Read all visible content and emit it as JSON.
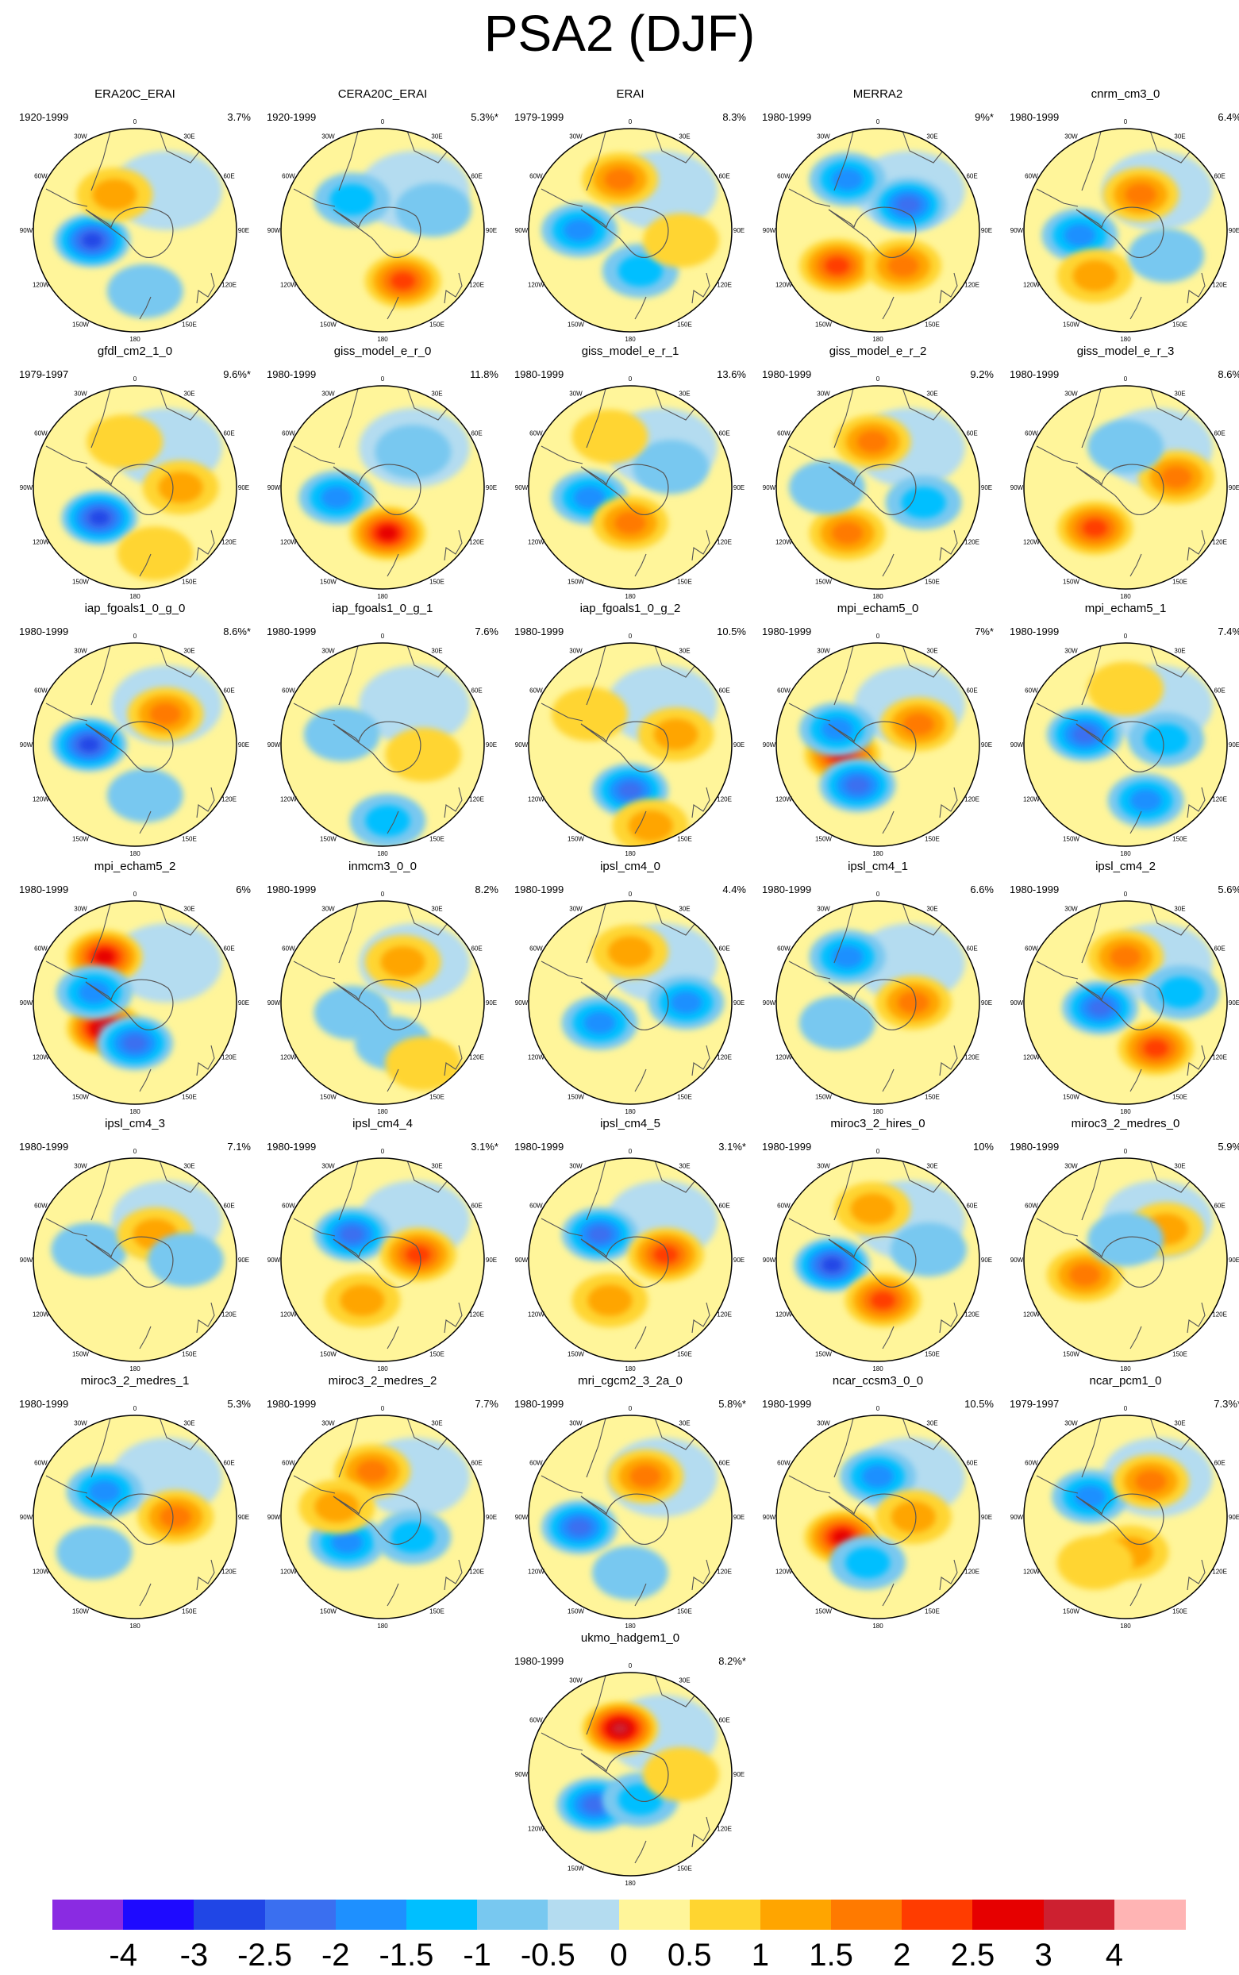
{
  "chart_data": {
    "type": "heatmap",
    "title": "PSA2 (DJF)",
    "map_labels": {
      "top": "0",
      "bottom": "180",
      "upper_right": "30E",
      "upper_left": "30W",
      "mid_upper_right": "60E",
      "mid_upper_left": "60W",
      "right": "90E",
      "left": "90W",
      "mid_lower_right": "120E",
      "mid_lower_left": "120W",
      "lower_right": "150E",
      "lower_left": "150W"
    },
    "colorbar": {
      "labels": [
        "-4",
        "-3",
        "-2.5",
        "-2",
        "-1.5",
        "-1",
        "-0.5",
        "0",
        "0.5",
        "1",
        "1.5",
        "2",
        "2.5",
        "3",
        "4"
      ],
      "colors": [
        "#8a2be2",
        "#1e0aff",
        "#2046e6",
        "#3a6ff0",
        "#1e90ff",
        "#00bfff",
        "#78c8f0",
        "#b4dcf0",
        "#fff59a",
        "#ffd530",
        "#ffa500",
        "#ff7a00",
        "#ff3c00",
        "#e60000",
        "#cd2030",
        "#ffb4b4"
      ]
    },
    "panels": [
      {
        "name": "ERA20C_ERAI",
        "period": "1920-1999",
        "variance": "3.7%",
        "blobs": [
          [
            -0.42,
            0.1,
            -2.5
          ],
          [
            -0.2,
            -0.35,
            1.0
          ],
          [
            0.1,
            0.6,
            -0.8
          ]
        ]
      },
      {
        "name": "CERA20C_ERAI",
        "period": "1920-1999",
        "variance": "5.3%*",
        "blobs": [
          [
            -0.3,
            -0.3,
            -1.0
          ],
          [
            0.2,
            0.5,
            2.0
          ],
          [
            0.5,
            -0.2,
            -0.6
          ]
        ]
      },
      {
        "name": "ERAI",
        "period": "1979-1999",
        "variance": "8.3%",
        "blobs": [
          [
            -0.5,
            0.0,
            -1.5
          ],
          [
            -0.1,
            -0.5,
            1.5
          ],
          [
            0.1,
            0.4,
            -1.2
          ],
          [
            0.5,
            0.1,
            0.8
          ]
        ]
      },
      {
        "name": "MERRA2",
        "period": "1980-1999",
        "variance": "9%*",
        "blobs": [
          [
            -0.3,
            -0.5,
            -1.5
          ],
          [
            0.3,
            -0.25,
            -2.0
          ],
          [
            -0.4,
            0.35,
            2.0
          ],
          [
            0.25,
            0.35,
            1.5
          ]
        ]
      },
      {
        "name": "cnrm_cm3_0",
        "period": "1980-1999",
        "variance": "6.4%",
        "blobs": [
          [
            -0.45,
            0.05,
            -1.5
          ],
          [
            0.15,
            -0.35,
            1.5
          ],
          [
            -0.3,
            0.45,
            1.2
          ],
          [
            0.4,
            0.25,
            -0.8
          ]
        ]
      },
      {
        "name": "gfdl_cm2_1_0",
        "period": "1979-1997",
        "variance": "9.6%*",
        "blobs": [
          [
            -0.35,
            0.3,
            -2.5
          ],
          [
            -0.1,
            -0.45,
            0.8
          ],
          [
            0.45,
            0.0,
            1.2
          ],
          [
            0.2,
            0.65,
            0.6
          ]
        ]
      },
      {
        "name": "giss_model_e_r_0",
        "period": "1980-1999",
        "variance": "11.8%",
        "blobs": [
          [
            -0.45,
            0.1,
            -1.5
          ],
          [
            0.05,
            0.45,
            2.5
          ],
          [
            0.3,
            -0.35,
            -0.8
          ]
        ]
      },
      {
        "name": "giss_model_e_r_1",
        "period": "1980-1999",
        "variance": "13.6%",
        "blobs": [
          [
            -0.4,
            0.1,
            -1.5
          ],
          [
            0.0,
            0.35,
            1.5
          ],
          [
            0.4,
            -0.2,
            -0.8
          ],
          [
            -0.2,
            -0.5,
            0.8
          ]
        ]
      },
      {
        "name": "giss_model_e_r_2",
        "period": "1980-1999",
        "variance": "9.2%",
        "blobs": [
          [
            -0.05,
            -0.45,
            1.5
          ],
          [
            -0.3,
            0.45,
            1.5
          ],
          [
            0.45,
            0.15,
            -1.0
          ],
          [
            -0.5,
            0.0,
            -0.8
          ]
        ]
      },
      {
        "name": "giss_model_e_r_3",
        "period": "1980-1999",
        "variance": "8.6%",
        "blobs": [
          [
            -0.3,
            0.4,
            2.0
          ],
          [
            0.5,
            -0.1,
            1.5
          ],
          [
            0.0,
            -0.4,
            -0.6
          ]
        ]
      },
      {
        "name": "iap_fgoals1_0_g_0",
        "period": "1980-1999",
        "variance": "8.6%*",
        "blobs": [
          [
            -0.45,
            0.0,
            -2.5
          ],
          [
            0.3,
            -0.3,
            1.5
          ],
          [
            0.1,
            0.5,
            -0.8
          ]
        ]
      },
      {
        "name": "iap_fgoals1_0_g_1",
        "period": "1980-1999",
        "variance": "7.6%",
        "blobs": [
          [
            -0.4,
            -0.1,
            -0.8
          ],
          [
            0.05,
            0.75,
            -1.2
          ],
          [
            0.4,
            0.1,
            0.6
          ]
        ]
      },
      {
        "name": "iap_fgoals1_0_g_2",
        "period": "1980-1999",
        "variance": "10.5%",
        "blobs": [
          [
            0.0,
            0.45,
            -2.0
          ],
          [
            0.45,
            -0.1,
            1.2
          ],
          [
            0.2,
            0.8,
            1.0
          ],
          [
            -0.4,
            -0.3,
            0.6
          ]
        ]
      },
      {
        "name": "mpi_echam5_0",
        "period": "1980-1999",
        "variance": "7%*",
        "blobs": [
          [
            -0.35,
            0.1,
            2.5
          ],
          [
            -0.4,
            -0.15,
            -1.5
          ],
          [
            -0.2,
            0.4,
            -2.0
          ],
          [
            0.4,
            -0.2,
            1.5
          ]
        ]
      },
      {
        "name": "mpi_echam5_1",
        "period": "1980-1999",
        "variance": "7.4%",
        "blobs": [
          [
            -0.4,
            -0.1,
            -2.0
          ],
          [
            0.2,
            0.55,
            -1.5
          ],
          [
            0.4,
            -0.05,
            -1.2
          ],
          [
            0.0,
            -0.55,
            0.6
          ]
        ]
      },
      {
        "name": "mpi_echam5_2",
        "period": "1980-1999",
        "variance": "6%",
        "blobs": [
          [
            -0.3,
            -0.45,
            2.5
          ],
          [
            -0.3,
            0.25,
            3.0
          ],
          [
            -0.4,
            -0.1,
            -1.5
          ],
          [
            0.0,
            0.4,
            -2.0
          ]
        ]
      },
      {
        "name": "inmcm3_0_0",
        "period": "1980-1999",
        "variance": "8.2%",
        "blobs": [
          [
            0.2,
            -0.4,
            1.2
          ],
          [
            -0.3,
            0.1,
            -0.8
          ],
          [
            0.1,
            0.4,
            -0.8
          ],
          [
            0.4,
            0.6,
            0.8
          ]
        ]
      },
      {
        "name": "ipsl_cm4_0",
        "period": "1980-1999",
        "variance": "4.4%",
        "blobs": [
          [
            -0.3,
            0.2,
            -1.5
          ],
          [
            0.55,
            0.0,
            -1.5
          ],
          [
            0.0,
            -0.5,
            1.2
          ]
        ]
      },
      {
        "name": "ipsl_cm4_1",
        "period": "1980-1999",
        "variance": "6.6%",
        "blobs": [
          [
            -0.3,
            -0.45,
            -1.5
          ],
          [
            0.35,
            0.0,
            1.5
          ],
          [
            -0.4,
            0.2,
            -0.8
          ]
        ]
      },
      {
        "name": "ipsl_cm4_2",
        "period": "1980-1999",
        "variance": "5.6%",
        "blobs": [
          [
            -0.25,
            0.05,
            -2.0
          ],
          [
            0.3,
            0.45,
            2.0
          ],
          [
            0.0,
            -0.45,
            1.5
          ],
          [
            0.55,
            -0.1,
            -1.2
          ]
        ]
      },
      {
        "name": "ipsl_cm4_3",
        "period": "1980-1999",
        "variance": "7.1%",
        "blobs": [
          [
            -0.45,
            -0.1,
            -0.8
          ],
          [
            0.2,
            -0.25,
            1.0
          ],
          [
            0.5,
            0.0,
            -0.8
          ]
        ]
      },
      {
        "name": "ipsl_cm4_4",
        "period": "1980-1999",
        "variance": "3.1%*",
        "blobs": [
          [
            -0.3,
            -0.25,
            -2.0
          ],
          [
            0.35,
            -0.05,
            2.0
          ],
          [
            -0.2,
            0.4,
            1.2
          ]
        ]
      },
      {
        "name": "ipsl_cm4_5",
        "period": "1980-1999",
        "variance": "3.1%*",
        "blobs": [
          [
            -0.3,
            -0.25,
            -2.0
          ],
          [
            0.35,
            -0.05,
            2.0
          ],
          [
            -0.2,
            0.4,
            1.2
          ]
        ]
      },
      {
        "name": "miroc3_2_hires_0",
        "period": "1980-1999",
        "variance": "10%",
        "blobs": [
          [
            -0.45,
            0.05,
            -2.5
          ],
          [
            0.05,
            0.4,
            2.0
          ],
          [
            -0.05,
            -0.5,
            1.2
          ],
          [
            0.5,
            -0.1,
            -0.8
          ]
        ]
      },
      {
        "name": "miroc3_2_medres_0",
        "period": "1980-1999",
        "variance": "5.9%",
        "blobs": [
          [
            -0.4,
            0.15,
            1.5
          ],
          [
            0.4,
            -0.3,
            1.2
          ],
          [
            0.0,
            -0.2,
            -0.6
          ]
        ]
      },
      {
        "name": "miroc3_2_medres_1",
        "period": "1980-1999",
        "variance": "5.3%",
        "blobs": [
          [
            -0.3,
            -0.25,
            -1.5
          ],
          [
            0.4,
            0.0,
            1.5
          ],
          [
            -0.4,
            0.35,
            -0.8
          ]
        ]
      },
      {
        "name": "miroc3_2_medres_2",
        "period": "1980-1999",
        "variance": "7.7%",
        "blobs": [
          [
            -0.1,
            -0.45,
            1.5
          ],
          [
            -0.35,
            0.25,
            -1.5
          ],
          [
            0.3,
            0.2,
            -1.0
          ],
          [
            -0.45,
            -0.1,
            1.0
          ]
        ]
      },
      {
        "name": "mri_cgcm2_3_2a_0",
        "period": "1980-1999",
        "variance": "5.8%*",
        "blobs": [
          [
            -0.5,
            0.1,
            -2.0
          ],
          [
            0.15,
            -0.4,
            1.5
          ],
          [
            0.0,
            0.55,
            -0.8
          ]
        ]
      },
      {
        "name": "ncar_ccsm3_0_0",
        "period": "1980-1999",
        "variance": "10.5%",
        "blobs": [
          [
            -0.35,
            0.2,
            2.5
          ],
          [
            0.0,
            -0.4,
            -1.5
          ],
          [
            0.35,
            0.0,
            1.2
          ],
          [
            -0.1,
            0.45,
            -1.2
          ]
        ]
      },
      {
        "name": "ncar_pcm1_0",
        "period": "1979-1997",
        "variance": "7.3%*",
        "blobs": [
          [
            -0.35,
            -0.2,
            -1.5
          ],
          [
            0.25,
            -0.35,
            1.5
          ],
          [
            0.05,
            0.35,
            1.0
          ],
          [
            -0.3,
            0.45,
            0.6
          ]
        ]
      },
      {
        "name": "ukmo_hadgem1_0",
        "period": "1980-1999",
        "variance": "8.2%*",
        "blobs": [
          [
            -0.1,
            -0.45,
            3.0
          ],
          [
            -0.35,
            0.3,
            -2.0
          ],
          [
            0.1,
            0.25,
            -1.0
          ],
          [
            0.5,
            0.0,
            0.6
          ]
        ]
      }
    ]
  }
}
